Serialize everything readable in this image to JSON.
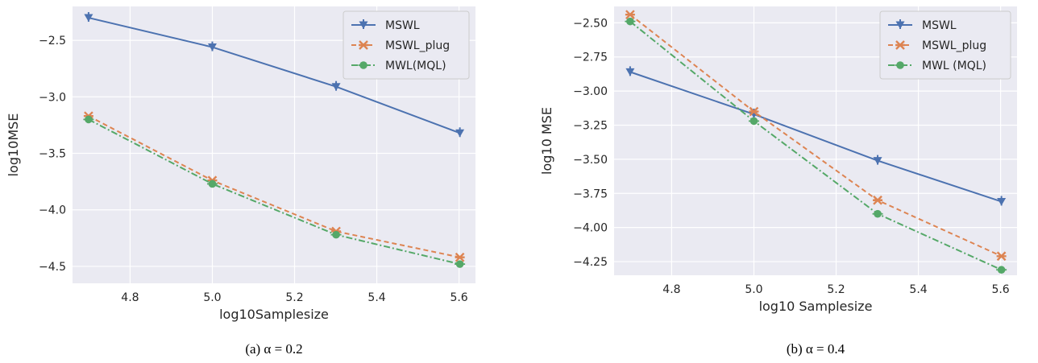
{
  "chart_data": [
    {
      "type": "line",
      "xlabel": "log10Samplesize",
      "ylabel": "log10MSE",
      "caption": "(a) α = 0.2",
      "xlim": [
        4.66,
        5.64
      ],
      "ylim": [
        -4.65,
        -2.2
      ],
      "xticks": [
        "4.8",
        "5.0",
        "5.2",
        "5.4",
        "5.6"
      ],
      "yticks": [
        "−2.5",
        "−3.0",
        "−3.5",
        "−4.0",
        "−4.5"
      ],
      "grid": true,
      "legend_position": "top-right",
      "x": [
        4.699,
        5.0,
        5.301,
        5.602
      ],
      "series": [
        {
          "name": "MSWL",
          "values": [
            -2.3,
            -2.56,
            -2.91,
            -3.32
          ],
          "color": "#4c72b0",
          "marker": "triangle-down",
          "dash": "solid"
        },
        {
          "name": "MSWL_plug",
          "values": [
            -3.17,
            -3.74,
            -4.19,
            -4.42
          ],
          "color": "#dd8452",
          "marker": "x",
          "dash": "dashed"
        },
        {
          "name": "MWL(MQL)",
          "values": [
            -3.2,
            -3.77,
            -4.22,
            -4.48
          ],
          "color": "#55a868",
          "marker": "circle",
          "dash": "dashdot"
        }
      ]
    },
    {
      "type": "line",
      "xlabel": "log10 Samplesize",
      "ylabel": "log10 MSE",
      "caption": "(b) α = 0.4",
      "xlim": [
        4.66,
        5.64
      ],
      "ylim": [
        -4.35,
        -2.38
      ],
      "xticks": [
        "4.8",
        "5.0",
        "5.2",
        "5.4",
        "5.6"
      ],
      "yticks": [
        "−2.50",
        "−2.75",
        "−3.00",
        "−3.25",
        "−3.50",
        "−3.75",
        "−4.00",
        "−4.25"
      ],
      "grid": true,
      "legend_position": "top-right",
      "x": [
        4.699,
        5.0,
        5.301,
        5.602
      ],
      "series": [
        {
          "name": "MSWL",
          "values": [
            -2.86,
            -3.17,
            -3.51,
            -3.81
          ],
          "color": "#4c72b0",
          "marker": "triangle-down",
          "dash": "solid"
        },
        {
          "name": "MSWL_plug",
          "values": [
            -2.44,
            -3.15,
            -3.8,
            -4.21
          ],
          "color": "#dd8452",
          "marker": "x",
          "dash": "dashed"
        },
        {
          "name": "MWL (MQL)",
          "values": [
            -2.49,
            -3.22,
            -3.9,
            -4.31
          ],
          "color": "#55a868",
          "marker": "circle",
          "dash": "dashdot"
        }
      ]
    }
  ]
}
